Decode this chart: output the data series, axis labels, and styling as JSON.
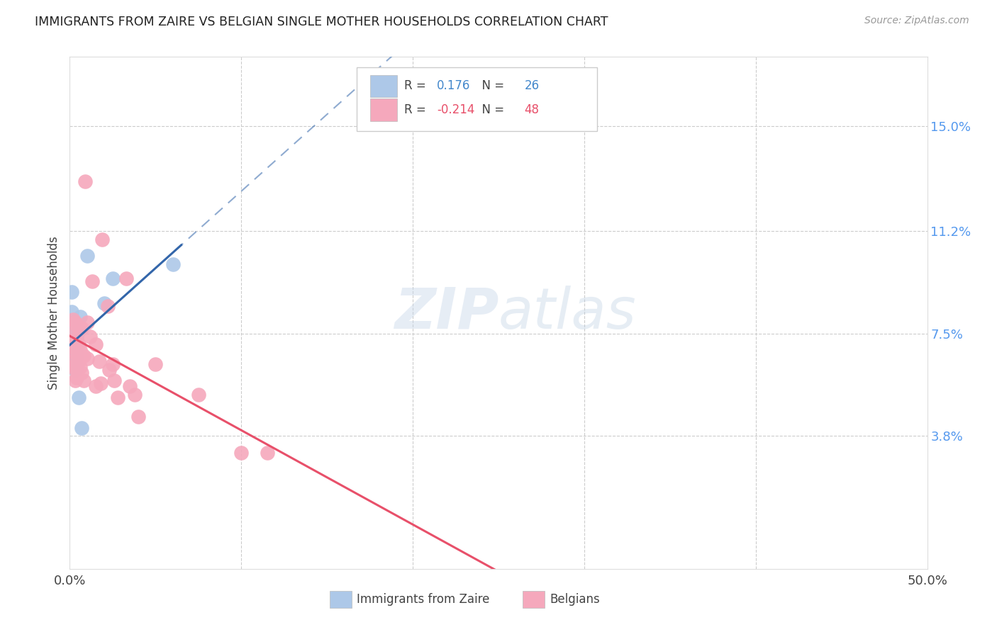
{
  "title": "IMMIGRANTS FROM ZAIRE VS BELGIAN SINGLE MOTHER HOUSEHOLDS CORRELATION CHART",
  "source": "Source: ZipAtlas.com",
  "ylabel": "Single Mother Households",
  "yaxis_labels": [
    "3.8%",
    "7.5%",
    "11.2%",
    "15.0%"
  ],
  "yaxis_values": [
    0.038,
    0.075,
    0.112,
    0.15
  ],
  "xmin": 0.0,
  "xmax": 0.5,
  "ymin": -0.01,
  "ymax": 0.175,
  "legend_blue_r": "0.176",
  "legend_blue_n": "26",
  "legend_pink_r": "-0.214",
  "legend_pink_n": "48",
  "blue_color": "#adc8e8",
  "blue_line_color": "#3366aa",
  "pink_color": "#f5a8bc",
  "pink_line_color": "#e8506a",
  "watermark_zip": "ZIP",
  "watermark_atlas": "atlas",
  "blue_points": [
    [
      0.001,
      0.09
    ],
    [
      0.001,
      0.083
    ],
    [
      0.002,
      0.079
    ],
    [
      0.002,
      0.076
    ],
    [
      0.002,
      0.073
    ],
    [
      0.002,
      0.07
    ],
    [
      0.003,
      0.078
    ],
    [
      0.003,
      0.075
    ],
    [
      0.003,
      0.073
    ],
    [
      0.003,
      0.071
    ],
    [
      0.003,
      0.068
    ],
    [
      0.003,
      0.065
    ],
    [
      0.003,
      0.062
    ],
    [
      0.004,
      0.077
    ],
    [
      0.004,
      0.074
    ],
    [
      0.004,
      0.07
    ],
    [
      0.004,
      0.067
    ],
    [
      0.004,
      0.063
    ],
    [
      0.005,
      0.076
    ],
    [
      0.005,
      0.052
    ],
    [
      0.006,
      0.081
    ],
    [
      0.007,
      0.041
    ],
    [
      0.01,
      0.103
    ],
    [
      0.02,
      0.086
    ],
    [
      0.025,
      0.095
    ],
    [
      0.06,
      0.1
    ]
  ],
  "pink_points": [
    [
      0.001,
      0.072
    ],
    [
      0.001,
      0.063
    ],
    [
      0.002,
      0.08
    ],
    [
      0.002,
      0.075
    ],
    [
      0.002,
      0.07
    ],
    [
      0.002,
      0.065
    ],
    [
      0.003,
      0.079
    ],
    [
      0.003,
      0.073
    ],
    [
      0.003,
      0.068
    ],
    [
      0.003,
      0.063
    ],
    [
      0.003,
      0.058
    ],
    [
      0.004,
      0.078
    ],
    [
      0.004,
      0.073
    ],
    [
      0.004,
      0.069
    ],
    [
      0.004,
      0.064
    ],
    [
      0.004,
      0.059
    ],
    [
      0.005,
      0.077
    ],
    [
      0.005,
      0.071
    ],
    [
      0.005,
      0.065
    ],
    [
      0.006,
      0.069
    ],
    [
      0.006,
      0.063
    ],
    [
      0.007,
      0.077
    ],
    [
      0.007,
      0.061
    ],
    [
      0.008,
      0.067
    ],
    [
      0.008,
      0.058
    ],
    [
      0.009,
      0.13
    ],
    [
      0.01,
      0.079
    ],
    [
      0.01,
      0.066
    ],
    [
      0.012,
      0.074
    ],
    [
      0.013,
      0.094
    ],
    [
      0.015,
      0.071
    ],
    [
      0.015,
      0.056
    ],
    [
      0.017,
      0.065
    ],
    [
      0.018,
      0.057
    ],
    [
      0.019,
      0.109
    ],
    [
      0.022,
      0.085
    ],
    [
      0.023,
      0.062
    ],
    [
      0.025,
      0.064
    ],
    [
      0.026,
      0.058
    ],
    [
      0.028,
      0.052
    ],
    [
      0.033,
      0.095
    ],
    [
      0.035,
      0.056
    ],
    [
      0.038,
      0.053
    ],
    [
      0.04,
      0.045
    ],
    [
      0.05,
      0.064
    ],
    [
      0.075,
      0.053
    ],
    [
      0.1,
      0.032
    ],
    [
      0.115,
      0.032
    ]
  ]
}
